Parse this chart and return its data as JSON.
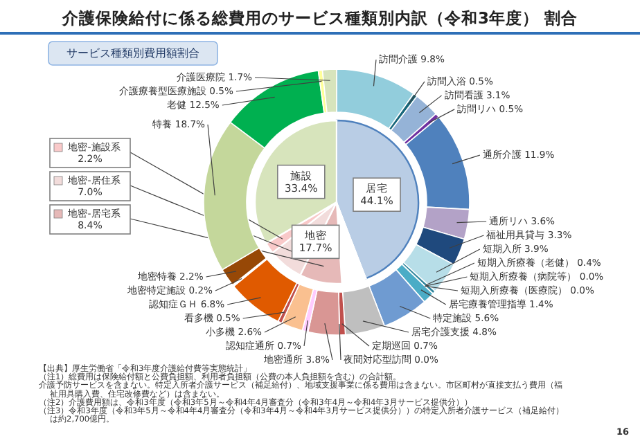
{
  "chart_data": [
    {
      "type": "donut",
      "title": "介護保険給付に係る総費用のサービス種類別内訳（令和3年度） 割合",
      "subtitle": "サービス種類別費用額割合",
      "categories": [
        "訪問介護",
        "訪問入浴",
        "訪問看護",
        "訪問リハ",
        "通所介護",
        "通所リハ",
        "福祉用具貸与",
        "短期入所",
        "短期入所療養（老健）",
        "短期入所療養（病院等）",
        "短期入所療養（医療院）",
        "居宅療養管理指導",
        "特定施設",
        "居宅介護支援",
        "定期巡回",
        "夜間対応型訪問",
        "地密通所",
        "認知症通所",
        "小多機",
        "看多機",
        "認知症ＧＨ",
        "地密特定施設",
        "地密特養",
        "特養",
        "老健",
        "介護療養型医療施設",
        "介護医療院"
      ],
      "values": [
        9.8,
        0.5,
        3.1,
        0.5,
        11.9,
        3.6,
        3.3,
        3.9,
        0.4,
        0.0,
        0.0,
        1.4,
        5.6,
        4.8,
        0.7,
        0.0,
        3.8,
        0.7,
        2.6,
        0.5,
        6.8,
        0.2,
        2.2,
        18.7,
        12.5,
        0.5,
        1.7
      ],
      "value_labels": [
        "9.8%",
        "0.5%",
        "3.1%",
        "0.5%",
        "11.9%",
        "3.6%",
        "3.3%",
        "3.9%",
        "0.4%",
        "0.0%",
        "0.0%",
        "1.4%",
        "5.6%",
        "4.8%",
        "0.7%",
        "0.0%",
        "3.8%",
        "0.7%",
        "2.6%",
        "0.5%",
        "6.8%",
        "0.2%",
        "2.2%",
        "18.7%",
        "12.5%",
        "0.5%",
        "1.7%"
      ],
      "colors": [
        "#92cddc",
        "#17667a",
        "#95b3d7",
        "#7030a0",
        "#4f81bd",
        "#b3a2c7",
        "#1f497d",
        "#b7dee8",
        "#31859c",
        "#4bacc6",
        "#215968",
        "#4bacc6",
        "#6f9bd1",
        "#bfbfbf",
        "#c0504d",
        "#ff0000",
        "#d99694",
        "#ffccff",
        "#fac090",
        "#c0504d",
        "#e05a00",
        "#ffffff",
        "#974806",
        "#c4d79b",
        "#00b050",
        "#ffff99",
        "#d7e4bc"
      ],
      "annotations": [
        "【出典】厚生労働省「令和3年度介護給付費等実態統計」",
        "（注1）総費用は保険給付額と公費負担額、利用者負担額（公費の本人負担額を含む）の合計額。",
        "介護予防サービスを含まない。特定入所者介護サービス（補足給付）、地域支援事業に係る費用は含まない。市区町村が直接支払う費用（福祉用具購入費、住宅改修費など）は含まない。",
        "（注2）介護費用額は、令和3年度（令和3年5月～令和4年4月審査分（令和3年4月～令和4年3月サービス提供分））",
        "（注3）令和3年度（令和3年5月～令和4年4月審査分（令和3年4月～令和4年3月サービス提供分））の特定入所者介護サービス（補足給付）は約2,700億円。",
        "16"
      ]
    },
    {
      "type": "pie",
      "legend": "left",
      "categories": [
        "居宅",
        null,
        "地密-居宅系",
        "地密-居住系",
        "地密-施設系",
        "施設"
      ],
      "values": [
        44.1,
        4.8,
        8.4,
        7.0,
        2.2,
        33.4
      ],
      "value_labels": [
        "44.1%",
        null,
        "8.4%",
        "7.0%",
        "2.2%",
        "33.4%"
      ],
      "colors": [
        "#b9cde5",
        "#ffffff",
        "#e6b9b8",
        "#f2dcdb",
        "#f9c9c9",
        "#d7e4bc"
      ],
      "annotations": [
        "地密 17.7%"
      ]
    }
  ]
}
